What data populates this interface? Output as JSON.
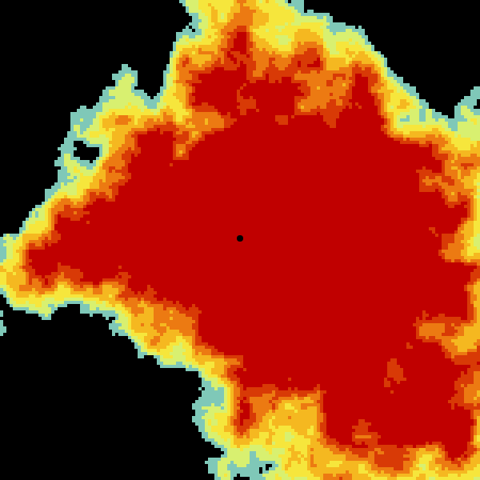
{
  "radar": {
    "background_color": "#000000",
    "site_marker_color": "#000000",
    "color_scale": [
      "#7fc8b8",
      "#d8f070",
      "#f6e63c",
      "#f5b820",
      "#ec7a12",
      "#d83a06",
      "#c00000"
    ]
  }
}
